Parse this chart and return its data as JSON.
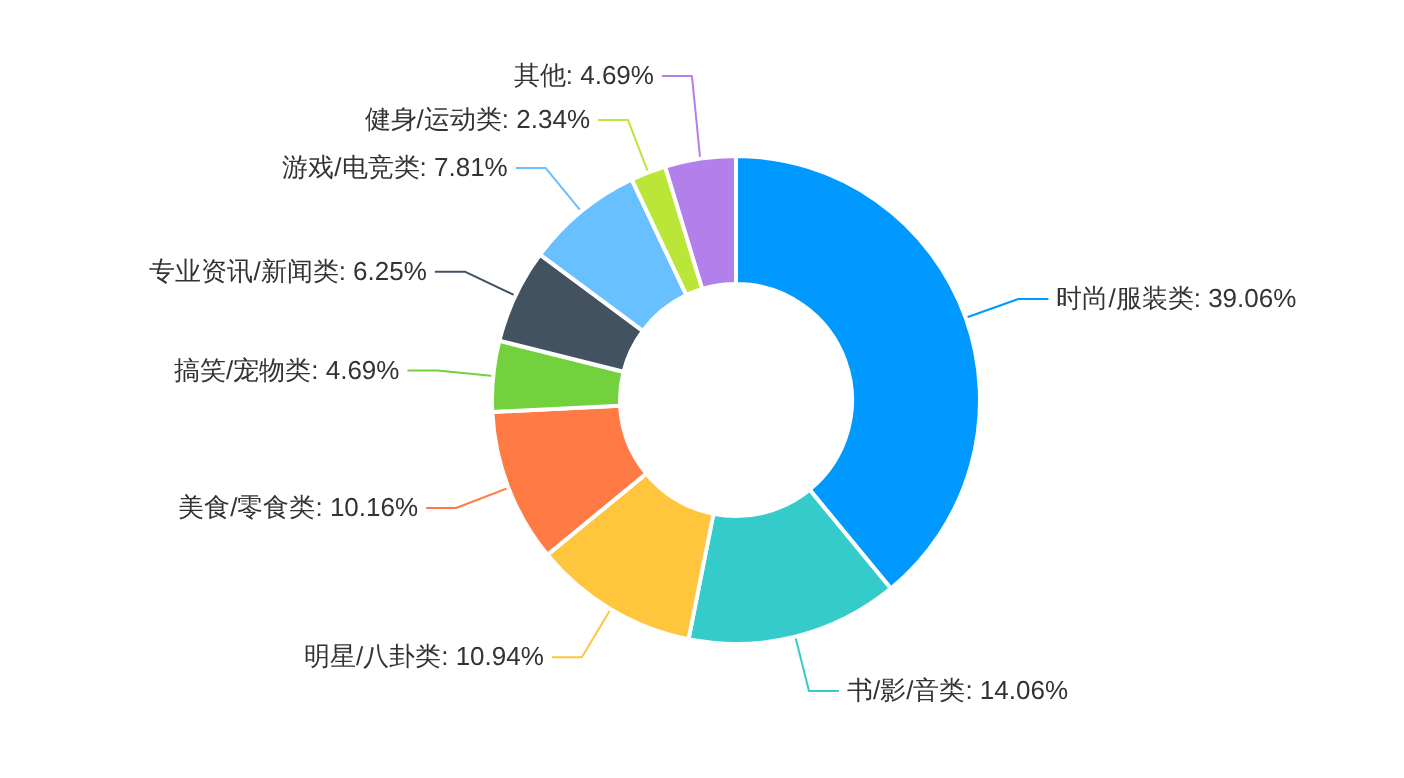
{
  "chart_data": {
    "type": "donut",
    "categories": [
      "时尚/服装类",
      "书/影/音类",
      "明星/八卦类",
      "美食/零食类",
      "搞笑/宠物类",
      "专业资讯/新闻类",
      "游戏/电竞类",
      "健身/运动类",
      "其他"
    ],
    "values": [
      39.06,
      14.06,
      10.94,
      10.16,
      4.69,
      6.25,
      7.81,
      2.34,
      4.69
    ],
    "value_labels": [
      "39.06%",
      "14.06%",
      "10.94%",
      "10.16%",
      "4.69%",
      "6.25%",
      "7.81%",
      "2.34%",
      "4.69%"
    ],
    "colors": [
      "#0099ff",
      "#36cbcb",
      "#ffc53d",
      "#ff7a45",
      "#73d13d",
      "#435261",
      "#69c0ff",
      "#bae637",
      "#b37feb"
    ]
  }
}
